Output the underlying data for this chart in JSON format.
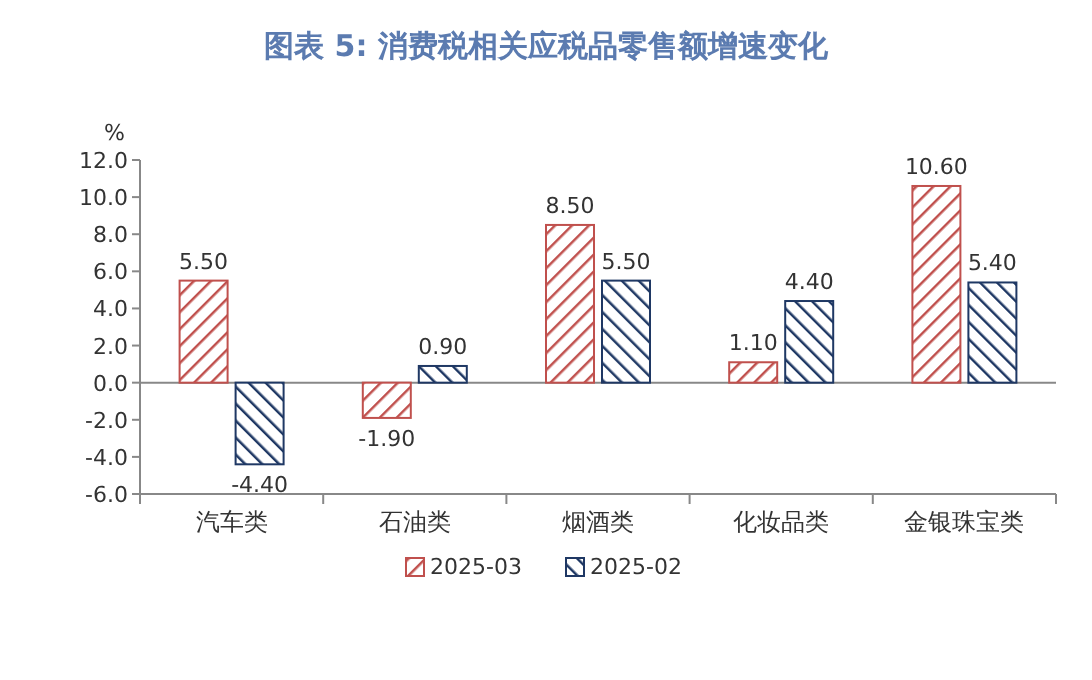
{
  "chart_data": {
    "type": "bar",
    "title": "图表 5:  消费税相关应税品零售额增速变化",
    "ylabel": "%",
    "categories": [
      "汽车类",
      "石油类",
      "烟酒类",
      "化妆品类",
      "金银珠宝类"
    ],
    "series": [
      {
        "name": "2025-03",
        "color": "#c0504d",
        "values": [
          5.5,
          -1.9,
          8.5,
          1.1,
          10.6
        ],
        "value_labels": [
          "5.50",
          "-1.90",
          "8.50",
          "1.10",
          "10.60"
        ]
      },
      {
        "name": "2025-02",
        "color": "#1f3864",
        "values": [
          -4.4,
          0.9,
          5.5,
          4.4,
          5.4
        ],
        "value_labels": [
          "-4.40",
          "0.90",
          "5.50",
          "4.40",
          "5.40"
        ]
      }
    ],
    "ylim": [
      -6,
      12
    ],
    "yticks": [
      {
        "value": -6,
        "label": "-6.0"
      },
      {
        "value": -4,
        "label": "-4.0"
      },
      {
        "value": -2,
        "label": "-2.0"
      },
      {
        "value": 0,
        "label": "0.0"
      },
      {
        "value": 2,
        "label": "2.0"
      },
      {
        "value": 4,
        "label": "4.0"
      },
      {
        "value": 6,
        "label": "6.0"
      },
      {
        "value": 8,
        "label": "8.0"
      },
      {
        "value": 10,
        "label": "10.0"
      },
      {
        "value": 12,
        "label": "12.0"
      }
    ],
    "legend": "bottom"
  }
}
